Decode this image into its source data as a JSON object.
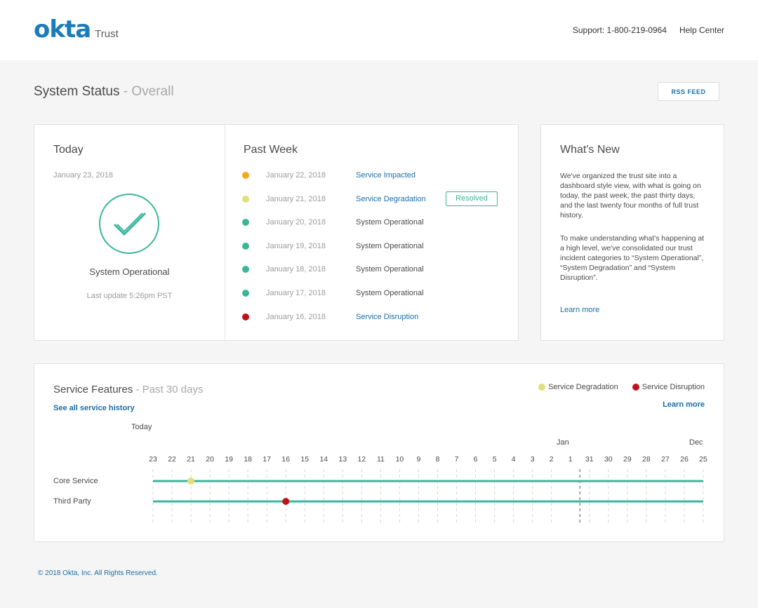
{
  "header": {
    "logo_word": "okta",
    "logo_sub": "Trust",
    "support": "Support: 1-800-219-0964",
    "help": "Help Center"
  },
  "page": {
    "title": "System Status",
    "title_sub": "- Overall",
    "rss": "RSS FEED"
  },
  "today": {
    "heading": "Today",
    "date": "January 23, 2018",
    "status": "System Operational",
    "update": "Last update 5:26pm PST"
  },
  "past_week": {
    "heading": "Past Week",
    "resolved_label": "Resolved",
    "rows": [
      {
        "date": "January 22, 2018",
        "status": "Service Impacted",
        "color": "#f5a623",
        "link": true
      },
      {
        "date": "January 21, 2018",
        "status": "Service Degradation",
        "color": "#dfe07a",
        "link": true,
        "resolved": true
      },
      {
        "date": "January 20, 2018",
        "status": "System Operational",
        "color": "#3ab79a",
        "link": false
      },
      {
        "date": "January 19, 2018",
        "status": "System Operational",
        "color": "#3ab79a",
        "link": false
      },
      {
        "date": "January 18, 2018",
        "status": "System Operational",
        "color": "#3ab79a",
        "link": false
      },
      {
        "date": "January 17, 2018",
        "status": "System Operational",
        "color": "#3ab79a",
        "link": false
      },
      {
        "date": "January 16, 2018",
        "status": "Service Disruption",
        "color": "#c0121c",
        "link": true
      }
    ]
  },
  "whats_new": {
    "heading": "What's New",
    "p1": "We've organized the trust site into a dashboard style view, with what is going on today, the past week, the past thirty days, and the last twenty four months of full trust history.",
    "p2": "To make understanding what's happening at a high level, we've consolidated our trust incident categories to “System Operational”, “System Degradation” and “System Disruption”.",
    "learn_more": "Learn more"
  },
  "features": {
    "title": "Service Features",
    "title_sub": "- Past 30 days",
    "see_all": "See all service history",
    "learn_more": "Learn more",
    "today_label": "Today",
    "jan_label": "Jan",
    "dec_label": "Dec",
    "legend": [
      {
        "label": "Service Degradation",
        "color": "#dfe07a"
      },
      {
        "label": "Service Disruption",
        "color": "#c0121c"
      }
    ],
    "days": [
      "23",
      "22",
      "21",
      "20",
      "19",
      "18",
      "17",
      "16",
      "15",
      "14",
      "13",
      "12",
      "11",
      "10",
      "9",
      "8",
      "7",
      "6",
      "5",
      "4",
      "3",
      "2",
      "1",
      "31",
      "30",
      "29",
      "28",
      "27",
      "26",
      "25"
    ],
    "rows": [
      {
        "label": "Core Service",
        "incidents": [
          {
            "day_index": 2,
            "color": "#dfe07a"
          }
        ]
      },
      {
        "label": "Third Party",
        "incidents": [
          {
            "day_index": 7,
            "color": "#c0121c"
          }
        ]
      }
    ],
    "line_color": "#3ab79a"
  },
  "footer": {
    "copyright": "© 2018 Okta, Inc. All Rights Reserved."
  }
}
